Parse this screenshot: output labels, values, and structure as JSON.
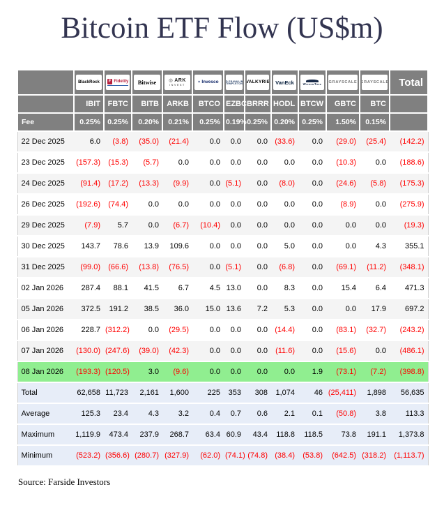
{
  "title": "Bitcoin ETF Flow (US$m)",
  "source": "Source: Farside Investors",
  "colors": {
    "title_color": "#323450",
    "header_bg": "#808080",
    "stripe": "#f4f4f4",
    "highlight_green": "#90ee90",
    "summary_bg": "#e7edf8",
    "negative": "#ff0000"
  },
  "table": {
    "fee_label": "Fee",
    "total_label": "Total",
    "providers": [
      {
        "id": "blackrock",
        "label": "BlackRock"
      },
      {
        "id": "fidelity",
        "label": "Fidelity"
      },
      {
        "id": "bitwise",
        "label": "Bitwise"
      },
      {
        "id": "ark",
        "label": "ARK",
        "sub": "INVEST"
      },
      {
        "id": "invesco",
        "label": "Invesco"
      },
      {
        "id": "franklin",
        "label": "FRANKLIN",
        "sub": "TEMPLETON"
      },
      {
        "id": "valkyrie",
        "label": "VALKYRIE"
      },
      {
        "id": "vaneck",
        "label": "VanEck"
      },
      {
        "id": "wisdomtree",
        "label": "WisdomTree"
      },
      {
        "id": "grayscale",
        "label": "GRAYSCALE"
      },
      {
        "id": "grayscale2",
        "label": "GRAYSCALE"
      }
    ],
    "summary_decimals": [
      0,
      1,
      1,
      1
    ]
  },
  "chart_data": {
    "type": "table",
    "title": "Bitcoin ETF Flow (US$m)",
    "units": "US$m",
    "columns": [
      "IBIT",
      "FBTC",
      "BITB",
      "ARKB",
      "BTCO",
      "EZBC",
      "BRRR",
      "HODL",
      "BTCW",
      "GBTC",
      "BTC",
      "Total"
    ],
    "fees_percent": [
      0.25,
      0.25,
      0.2,
      0.21,
      0.25,
      0.19,
      0.25,
      0.2,
      0.25,
      1.5,
      0.15
    ],
    "highlighted_row": "08 Jan 2026",
    "rows": [
      {
        "date": "22 Dec 2025",
        "values": [
          6.0,
          -3.8,
          -35.0,
          -21.4,
          0.0,
          0.0,
          0.0,
          -33.6,
          0.0,
          -29.0,
          -25.4,
          -142.2
        ]
      },
      {
        "date": "23 Dec 2025",
        "values": [
          -157.3,
          -15.3,
          -5.7,
          0.0,
          0.0,
          0.0,
          0.0,
          0.0,
          0.0,
          -10.3,
          0.0,
          -188.6
        ]
      },
      {
        "date": "24 Dec 2025",
        "values": [
          -91.4,
          -17.2,
          -13.3,
          -9.9,
          0.0,
          -5.1,
          0.0,
          -8.0,
          0.0,
          -24.6,
          -5.8,
          -175.3
        ]
      },
      {
        "date": "26 Dec 2025",
        "values": [
          -192.6,
          -74.4,
          0.0,
          0.0,
          0.0,
          0.0,
          0.0,
          0.0,
          0.0,
          -8.9,
          0.0,
          -275.9
        ]
      },
      {
        "date": "29 Dec 2025",
        "values": [
          -7.9,
          5.7,
          0.0,
          -6.7,
          -10.4,
          0.0,
          0.0,
          0.0,
          0.0,
          0.0,
          0.0,
          -19.3
        ]
      },
      {
        "date": "30 Dec 2025",
        "values": [
          143.7,
          78.6,
          13.9,
          109.6,
          0.0,
          0.0,
          0.0,
          5.0,
          0.0,
          0.0,
          4.3,
          355.1
        ]
      },
      {
        "date": "31 Dec 2025",
        "values": [
          -99.0,
          -66.6,
          -13.8,
          -76.5,
          0.0,
          -5.1,
          0.0,
          -6.8,
          0.0,
          -69.1,
          -11.2,
          -348.1
        ]
      },
      {
        "date": "02 Jan 2026",
        "values": [
          287.4,
          88.1,
          41.5,
          6.7,
          4.5,
          13.0,
          0.0,
          8.3,
          0.0,
          15.4,
          6.4,
          471.3
        ]
      },
      {
        "date": "05 Jan 2026",
        "values": [
          372.5,
          191.2,
          38.5,
          36.0,
          15.0,
          13.6,
          7.2,
          5.3,
          0.0,
          0.0,
          17.9,
          697.2
        ]
      },
      {
        "date": "06 Jan 2026",
        "values": [
          228.7,
          -312.2,
          0.0,
          -29.5,
          0.0,
          0.0,
          0.0,
          -14.4,
          0.0,
          -83.1,
          -32.7,
          -243.2
        ]
      },
      {
        "date": "07 Jan 2026",
        "values": [
          -130.0,
          -247.6,
          -39.0,
          -42.3,
          0.0,
          0.0,
          0.0,
          -11.6,
          0.0,
          -15.6,
          0.0,
          -486.1
        ]
      },
      {
        "date": "08 Jan 2026",
        "values": [
          -193.3,
          -120.5,
          3.0,
          -9.6,
          0.0,
          0.0,
          0.0,
          0.0,
          1.9,
          -73.1,
          -7.2,
          -398.8
        ]
      }
    ],
    "summary": [
      {
        "label": "Total",
        "values": [
          62658,
          11723,
          2161,
          1600,
          225,
          353,
          308,
          1074,
          46,
          -25411,
          1898,
          56635
        ]
      },
      {
        "label": "Average",
        "values": [
          125.3,
          23.4,
          4.3,
          3.2,
          0.4,
          0.7,
          0.6,
          2.1,
          0.1,
          -50.8,
          3.8,
          113.3
        ]
      },
      {
        "label": "Maximum",
        "values": [
          1119.9,
          473.4,
          237.9,
          268.7,
          63.4,
          60.9,
          43.4,
          118.8,
          118.5,
          73.8,
          191.1,
          1373.8
        ]
      },
      {
        "label": "Minimum",
        "values": [
          -523.2,
          -356.6,
          -280.7,
          -327.9,
          -62.0,
          -74.1,
          -74.8,
          -38.4,
          -53.8,
          -642.5,
          -318.2,
          -1113.7
        ]
      }
    ]
  }
}
